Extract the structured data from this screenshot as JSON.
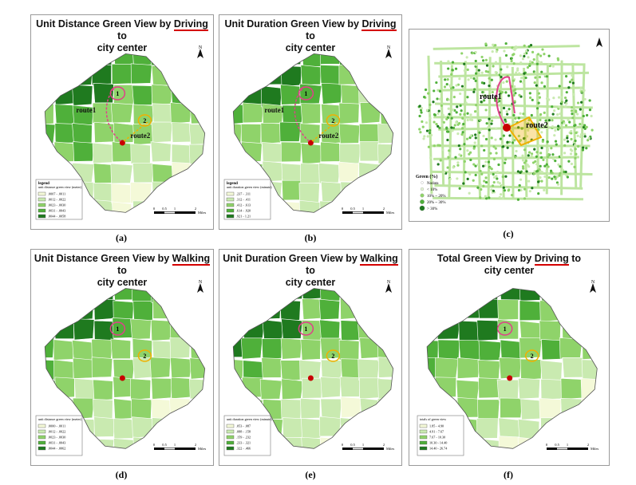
{
  "panels": [
    {
      "id": "a",
      "title_pre": "Unit Distance Green View by ",
      "title_em": "Driving",
      "title_post": " to",
      "title_line2": "city center",
      "legend_title": "legend",
      "legend_sub": "unit distance green view (meter)",
      "legend_items": [
        ".0007 - .0011",
        ".0012 - .0022",
        ".0023 - .0030",
        ".0031 - .0043",
        ".0044 - .0058"
      ],
      "caption": "(a)",
      "routes": true,
      "legend_label": "legend"
    },
    {
      "id": "b",
      "title_pre": "Unit Duration Green View by ",
      "title_em": "Driving",
      "title_post": " to",
      "title_line2": "city center",
      "legend_title": "legend",
      "legend_sub": "unit duration green view (minute)",
      "legend_items": [
        ".237 - .311",
        ".312 - .411",
        ".412 - .613",
        ".614 - .920",
        ".921 - 1.21"
      ],
      "caption": "(b)",
      "routes": true
    },
    {
      "id": "d",
      "title_pre": "Unit Distance Green View by ",
      "title_em": "Walking",
      "title_post": " to",
      "title_line2": "city center",
      "legend_title": "",
      "legend_sub": "unit distance green view (meter)",
      "legend_items": [
        ".0000 - .0011",
        ".0012 - .0022",
        ".0023 - .0030",
        ".0031 - .0043",
        ".0044 - .0062"
      ],
      "caption": "(d)",
      "routes": false
    },
    {
      "id": "e",
      "title_pre": "Unit Duration Green View by ",
      "title_em": "Walking",
      "title_post": " to",
      "title_line2": "city center",
      "legend_title": "",
      "legend_sub": "unit duration green view (minute)",
      "legend_items": [
        ".053 - .087",
        ".088 - .158",
        ".159 - .232",
        ".233 - .321",
        ".322 - .466"
      ],
      "caption": "(e)",
      "routes": false
    },
    {
      "id": "f",
      "title_pre": "Total  Green View by ",
      "title_em": "Driving",
      "title_post": " to",
      "title_line2": "city center",
      "legend_title": "",
      "legend_sub": "totals of green view",
      "legend_items": [
        "1.85 - 4.90",
        "4.91 - 7.67",
        "7.67 - 10.30",
        "10.30 - 14.40",
        "14.40 - 26.74"
      ],
      "caption": "(f)",
      "routes": false
    }
  ],
  "panel_c": {
    "caption": "(c)",
    "route1": "route1",
    "route2": "route2",
    "legend_title": "Green (%)",
    "legend_items": [
      "Nodata",
      "< 10%",
      "10% ~ 20%",
      "20% ~ 30%",
      "> 30%"
    ]
  },
  "labels": {
    "route1": "route1",
    "route2": "route2",
    "marker1": "1",
    "marker2": "2",
    "north": "N",
    "scale_ticks": [
      "0",
      "0.5",
      "1",
      "2"
    ],
    "scale_unit": "Miles"
  },
  "colors": {
    "c1": "#f4f9d8",
    "c2": "#c9eab0",
    "c3": "#8fd36a",
    "c4": "#4fb03a",
    "c5": "#1f7a1f",
    "route1": "#e0408a",
    "route2": "#f0b000",
    "center": "#c80000",
    "underline": "#d40000"
  }
}
